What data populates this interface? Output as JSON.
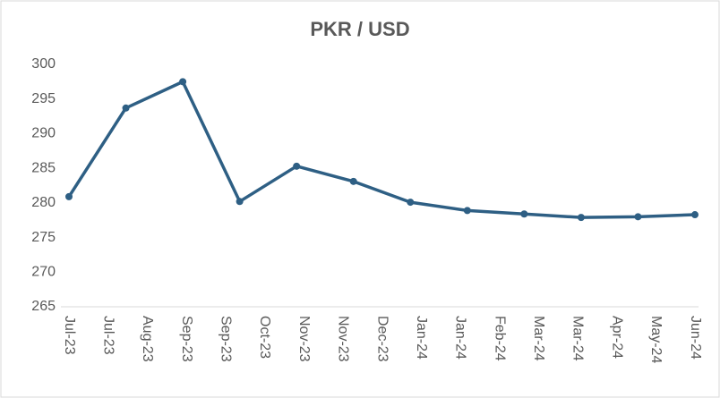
{
  "chart_data": {
    "type": "line",
    "title": "PKR / USD",
    "x": [
      "Jul-23",
      "Aug-23",
      "Sep-23",
      "Oct-23",
      "Nov-23",
      "Dec-23",
      "Jan-24",
      "Feb-24",
      "Mar-24",
      "Apr-24",
      "May-24",
      "Jun-24"
    ],
    "xticks": [
      "Jul-23",
      "Jul-23",
      "Aug-23",
      "Sep-23",
      "Sep-23",
      "Oct-23",
      "Nov-23",
      "Nov-23",
      "Dec-23",
      "Jan-24",
      "Jan-24",
      "Feb-24",
      "Mar-24",
      "Mar-24",
      "Apr-24",
      "May-24",
      "Jun-24"
    ],
    "series": [
      {
        "color": "#2e5f84",
        "values": [
          280.9,
          293.7,
          297.5,
          280.2,
          285.3,
          283.1,
          280.1,
          278.9,
          278.4,
          277.9,
          278.0,
          278.3
        ]
      }
    ],
    "ylim": [
      265,
      300
    ],
    "yticks": [
      265,
      270,
      275,
      280,
      285,
      290,
      295,
      300
    ],
    "grid": false
  }
}
